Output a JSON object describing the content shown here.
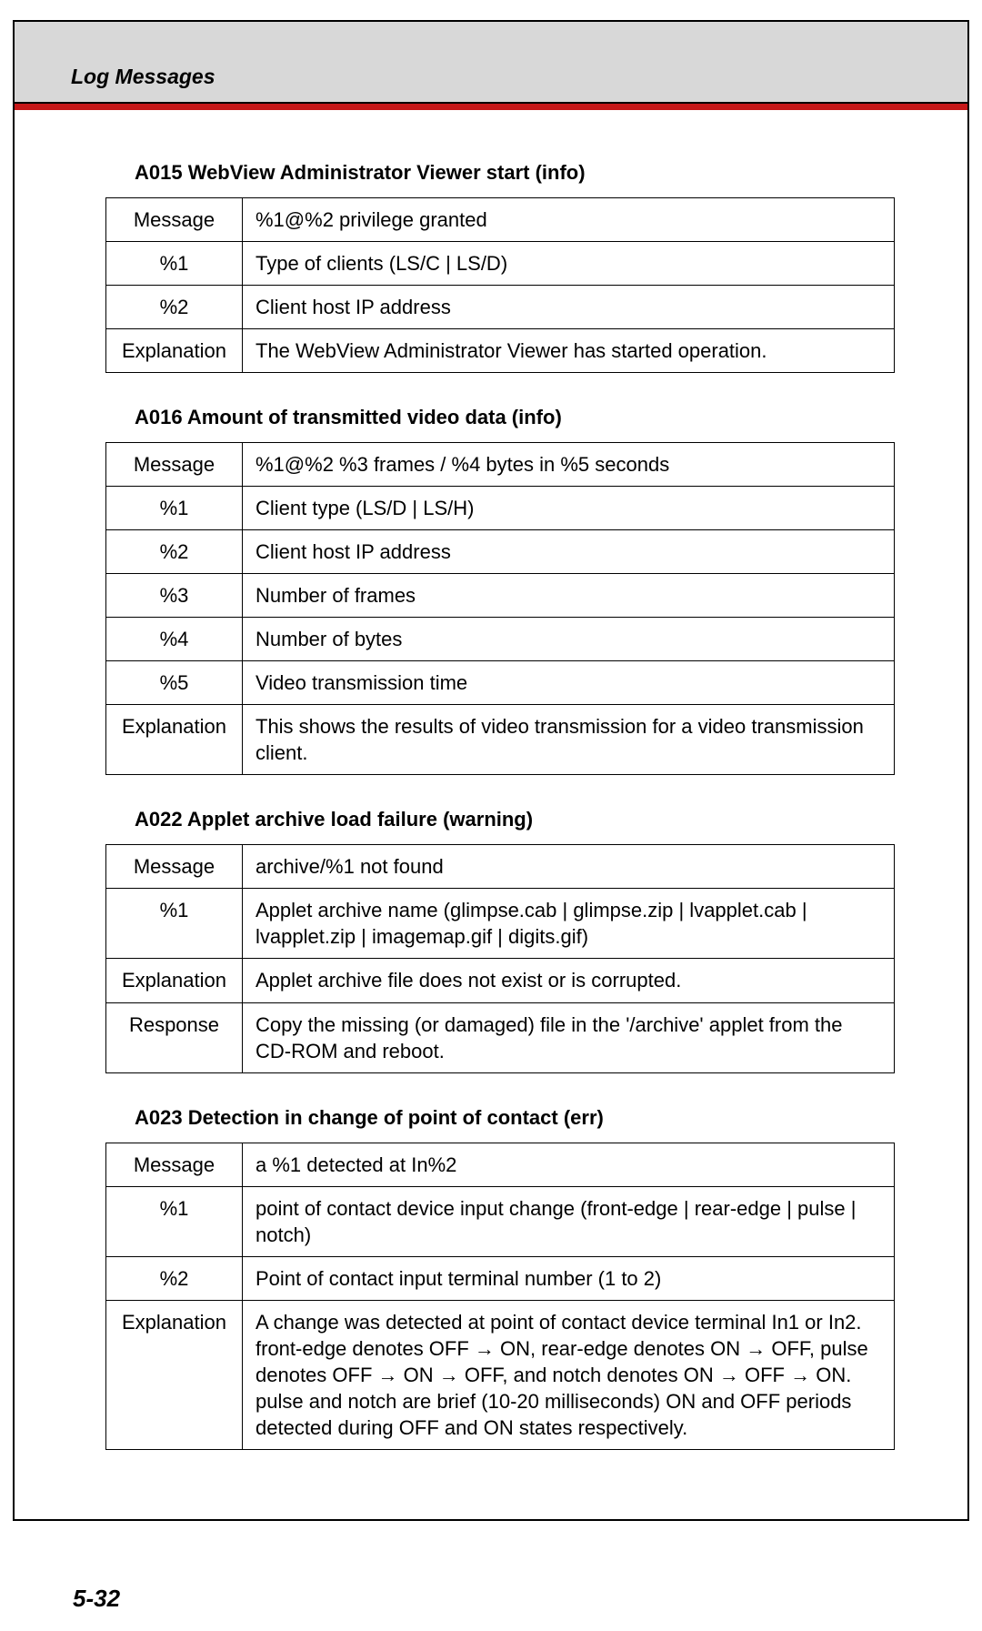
{
  "header": {
    "strip_title": "Log Messages"
  },
  "sections": [
    {
      "title": "A015 WebView Administrator Viewer start (info)",
      "rows": [
        {
          "label": "Message",
          "value": "%1@%2 privilege granted"
        },
        {
          "label": "%1",
          "value": "Type of clients (LS/C | LS/D)"
        },
        {
          "label": "%2",
          "value": "Client host IP address"
        },
        {
          "label": "Explanation",
          "value": "The WebView Administrator Viewer has started operation."
        }
      ]
    },
    {
      "title": "A016 Amount of transmitted video data (info)",
      "rows": [
        {
          "label": "Message",
          "value": "%1@%2 %3 frames / %4 bytes in %5 seconds"
        },
        {
          "label": "%1",
          "value": "Client type (LS/D | LS/H)"
        },
        {
          "label": "%2",
          "value": "Client host IP address"
        },
        {
          "label": "%3",
          "value": "Number of frames"
        },
        {
          "label": "%4",
          "value": "Number of bytes"
        },
        {
          "label": "%5",
          "value": "Video transmission time"
        },
        {
          "label": "Explanation",
          "value": "This shows the results of video transmission for a video transmission client."
        }
      ]
    },
    {
      "title": "A022 Applet archive load failure (warning)",
      "rows": [
        {
          "label": "Message",
          "value": "archive/%1 not found"
        },
        {
          "label": "%1",
          "value": "Applet archive name (glimpse.cab | glimpse.zip | lvapplet.cab | lvapplet.zip | imagemap.gif | digits.gif)"
        },
        {
          "label": "Explanation",
          "value": "Applet archive file does not exist or is corrupted."
        },
        {
          "label": "Response",
          "value": "Copy the missing (or damaged) file in the '/archive' applet from the CD-ROM and reboot."
        }
      ]
    },
    {
      "title": "A023 Detection in change of point of contact (err)",
      "rows": [
        {
          "label": "Message",
          "value": "a %1 detected at In%2"
        },
        {
          "label": "%1",
          "value": "point of contact device input change (front-edge | rear-edge | pulse | notch)"
        },
        {
          "label": "%2",
          "value": "Point of contact input terminal number (1 to 2)"
        },
        {
          "label": "Explanation",
          "value": "A change was detected at point of contact device terminal In1 or In2. front-edge denotes OFF → ON, rear-edge denotes ON → OFF, pulse denotes OFF → ON → OFF, and notch denotes ON → OFF → ON. pulse and notch are brief (10-20 milliseconds) ON and OFF periods detected during OFF and ON states respectively."
        }
      ]
    }
  ],
  "page_number": "5-32"
}
